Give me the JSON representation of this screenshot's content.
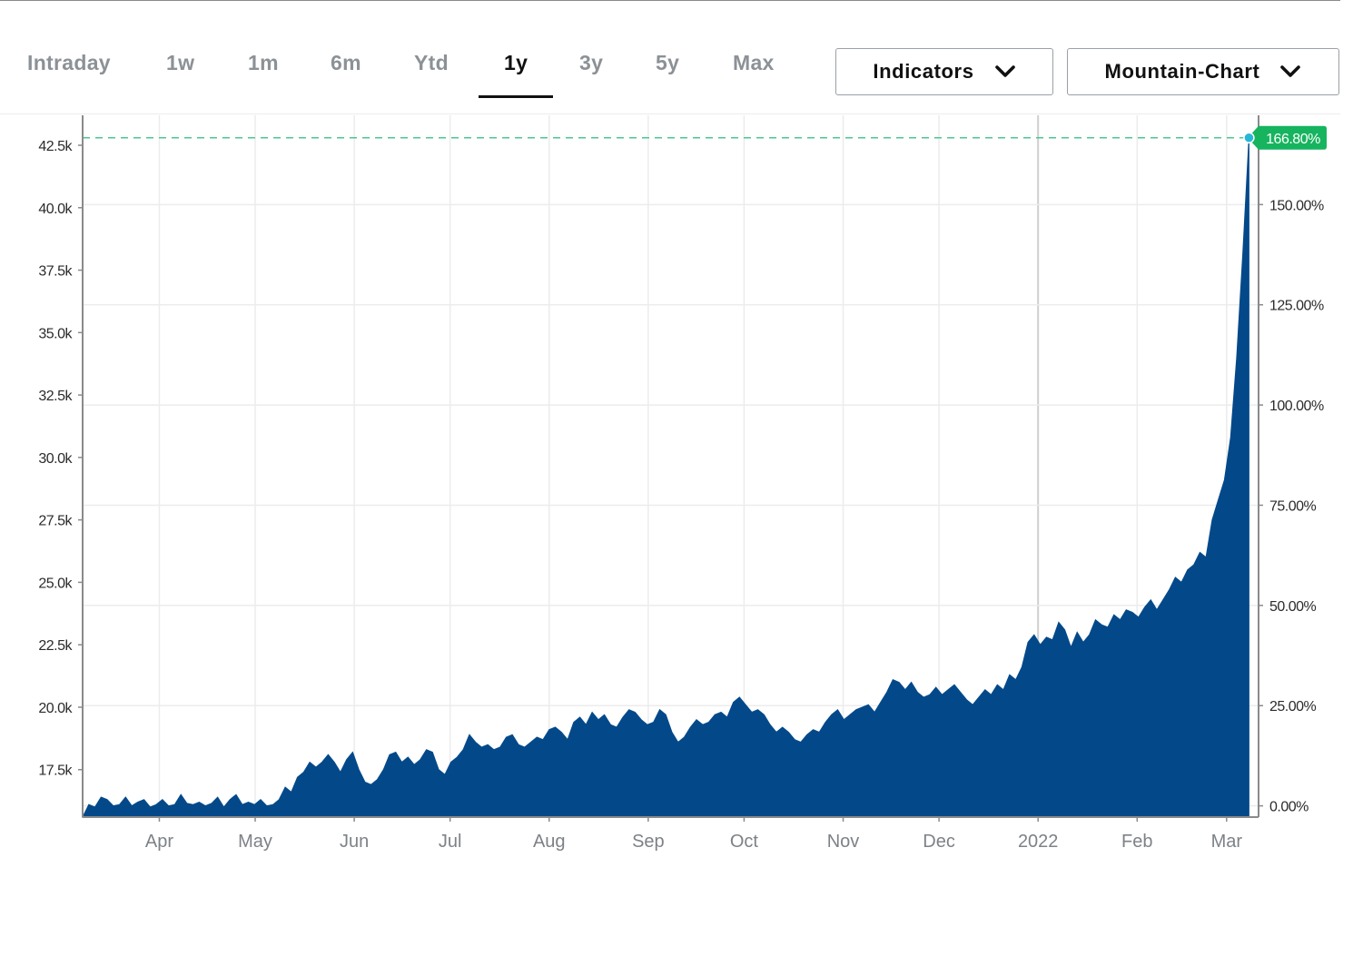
{
  "tabs": [
    {
      "label": "Intraday",
      "active": false
    },
    {
      "label": "1w",
      "active": false
    },
    {
      "label": "1m",
      "active": false
    },
    {
      "label": "6m",
      "active": false
    },
    {
      "label": "Ytd",
      "active": false
    },
    {
      "label": "1y",
      "active": true
    },
    {
      "label": "3y",
      "active": false
    },
    {
      "label": "5y",
      "active": false
    },
    {
      "label": "Max",
      "active": false
    }
  ],
  "controls": {
    "indicators_label": "Indicators",
    "chart_type_label": "Mountain-Chart",
    "dropdown_icon": "chevron-down-icon"
  },
  "colors": {
    "area_fill": "#03498a",
    "reference_line": "#4cc790",
    "last_value_badge": "#16b45e",
    "marker": "#26b7d8",
    "active_tab": "#111111",
    "inactive_tab": "#8c9196"
  },
  "chart_data": {
    "type": "area",
    "title": "",
    "xlabel": "",
    "ylabel": "",
    "x_start": "2021-03-08",
    "x_end": "2022-03-08",
    "xlim": [
      "2021-03-08",
      "2022-03-11"
    ],
    "ylim": [
      15600,
      43700
    ],
    "left_ticks": [
      {
        "value": 17500,
        "label": "17.5k"
      },
      {
        "value": 20000,
        "label": "20.0k"
      },
      {
        "value": 22500,
        "label": "22.5k"
      },
      {
        "value": 25000,
        "label": "25.0k"
      },
      {
        "value": 27500,
        "label": "27.5k"
      },
      {
        "value": 30000,
        "label": "30.0k"
      },
      {
        "value": 32500,
        "label": "32.5k"
      },
      {
        "value": 35000,
        "label": "35.0k"
      },
      {
        "value": 37500,
        "label": "37.5k"
      },
      {
        "value": 40000,
        "label": "40.0k"
      },
      {
        "value": 42500,
        "label": "42.5k"
      }
    ],
    "right_axis_base": 16050,
    "right_ticks": [
      {
        "value": 0,
        "label": "0.00%"
      },
      {
        "value": 25,
        "label": "25.00%"
      },
      {
        "value": 50,
        "label": "50.00%"
      },
      {
        "value": 75,
        "label": "75.00%"
      },
      {
        "value": 100,
        "label": "100.00%"
      },
      {
        "value": 125,
        "label": "125.00%"
      },
      {
        "value": 150,
        "label": "150.00%"
      }
    ],
    "x_ticks": [
      {
        "date": "2021-04-01",
        "label": "Apr"
      },
      {
        "date": "2021-05-01",
        "label": "May"
      },
      {
        "date": "2021-06-01",
        "label": "Jun"
      },
      {
        "date": "2021-07-01",
        "label": "Jul"
      },
      {
        "date": "2021-08-01",
        "label": "Aug"
      },
      {
        "date": "2021-09-01",
        "label": "Sep"
      },
      {
        "date": "2021-10-01",
        "label": "Oct"
      },
      {
        "date": "2021-11-01",
        "label": "Nov"
      },
      {
        "date": "2021-12-01",
        "label": "Dec"
      },
      {
        "date": "2022-01-01",
        "label": "2022"
      },
      {
        "date": "2022-02-01",
        "label": "Feb"
      },
      {
        "date": "2022-03-01",
        "label": "Mar"
      }
    ],
    "last_value_label": "166.80%",
    "last_value": 42800,
    "grid": true,
    "series": [
      {
        "values": [
          15600,
          16100,
          16000,
          16400,
          16300,
          16050,
          16100,
          16400,
          16050,
          16200,
          16300,
          16000,
          16100,
          16300,
          16050,
          16100,
          16500,
          16150,
          16100,
          16200,
          16050,
          16150,
          16400,
          16000,
          16300,
          16500,
          16100,
          16200,
          16100,
          16300,
          16050,
          16100,
          16300,
          16800,
          16600,
          17200,
          17400,
          17800,
          17600,
          17800,
          18100,
          17800,
          17400,
          17900,
          18200,
          17500,
          17000,
          16900,
          17100,
          17500,
          18100,
          18200,
          17800,
          18000,
          17700,
          17900,
          18300,
          18200,
          17500,
          17300,
          17800,
          18000,
          18300,
          18900,
          18600,
          18400,
          18500,
          18300,
          18400,
          18800,
          18900,
          18500,
          18400,
          18600,
          18800,
          18700,
          19100,
          19200,
          19000,
          18700,
          19400,
          19600,
          19300,
          19800,
          19500,
          19700,
          19300,
          19200,
          19600,
          19900,
          19800,
          19500,
          19300,
          19400,
          19900,
          19700,
          19000,
          18600,
          18800,
          19200,
          19500,
          19300,
          19400,
          19700,
          19800,
          19600,
          20200,
          20400,
          20100,
          19800,
          19900,
          19700,
          19300,
          19000,
          19200,
          19000,
          18700,
          18600,
          18900,
          19100,
          19000,
          19400,
          19700,
          19900,
          19500,
          19700,
          19900,
          20000,
          20100,
          19800,
          20200,
          20600,
          21100,
          21000,
          20700,
          21000,
          20600,
          20400,
          20500,
          20800,
          20500,
          20700,
          20900,
          20600,
          20300,
          20100,
          20400,
          20700,
          20500,
          20900,
          20700,
          21300,
          21100,
          21600,
          22600,
          22900,
          22500,
          22800,
          22700,
          23400,
          23100,
          22400,
          23000,
          22600,
          22900,
          23500,
          23300,
          23200,
          23700,
          23500,
          23900,
          23800,
          23600,
          24000,
          24300,
          23900,
          24300,
          24700,
          25200,
          25000,
          25500,
          25700,
          26200,
          26000,
          27500,
          28300,
          29100,
          30800,
          34000,
          38200,
          42800
        ]
      }
    ]
  }
}
